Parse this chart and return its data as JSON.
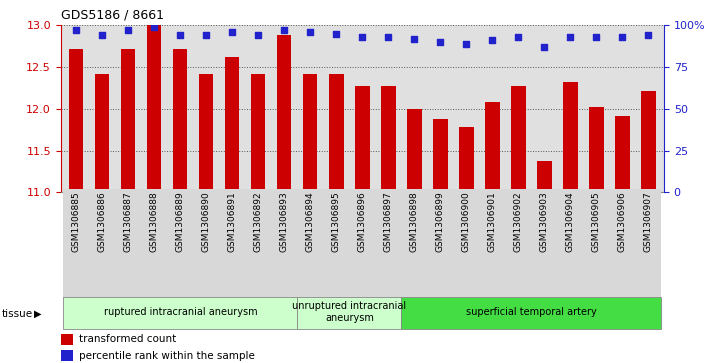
{
  "title": "GDS5186 / 8661",
  "samples": [
    "GSM1306885",
    "GSM1306886",
    "GSM1306887",
    "GSM1306888",
    "GSM1306889",
    "GSM1306890",
    "GSM1306891",
    "GSM1306892",
    "GSM1306893",
    "GSM1306894",
    "GSM1306895",
    "GSM1306896",
    "GSM1306897",
    "GSM1306898",
    "GSM1306899",
    "GSM1306900",
    "GSM1306901",
    "GSM1306902",
    "GSM1306903",
    "GSM1306904",
    "GSM1306905",
    "GSM1306906",
    "GSM1306907"
  ],
  "transformed_count": [
    12.72,
    12.42,
    12.72,
    13.0,
    12.72,
    12.42,
    12.62,
    12.42,
    12.88,
    12.42,
    12.42,
    12.28,
    12.28,
    12.0,
    11.88,
    11.78,
    12.08,
    12.28,
    11.38,
    12.32,
    12.02,
    11.92,
    12.22
  ],
  "percentile_rank": [
    97,
    94,
    97,
    99,
    94,
    94,
    96,
    94,
    97,
    96,
    95,
    93,
    93,
    92,
    90,
    89,
    91,
    93,
    87,
    93,
    93,
    93,
    94
  ],
  "bar_color": "#cc0000",
  "dot_color": "#2222cc",
  "ylim_left": [
    11,
    13
  ],
  "ylim_right": [
    0,
    100
  ],
  "yticks_left": [
    11,
    11.5,
    12,
    12.5,
    13
  ],
  "yticks_right": [
    0,
    25,
    50,
    75,
    100
  ],
  "ylabel_right_labels": [
    "0",
    "25",
    "50",
    "75",
    "100%"
  ],
  "groups": [
    {
      "label": "ruptured intracranial aneurysm",
      "start": 0,
      "end": 9,
      "color": "#ccffcc"
    },
    {
      "label": "unruptured intracranial\naneurysm",
      "start": 9,
      "end": 13,
      "color": "#ccffcc"
    },
    {
      "label": "superficial temporal artery",
      "start": 13,
      "end": 23,
      "color": "#44dd44"
    }
  ],
  "tissue_label": "tissue",
  "legend_bar_label": "transformed count",
  "legend_dot_label": "percentile rank within the sample",
  "plot_bg_color": "#e0e0e0"
}
